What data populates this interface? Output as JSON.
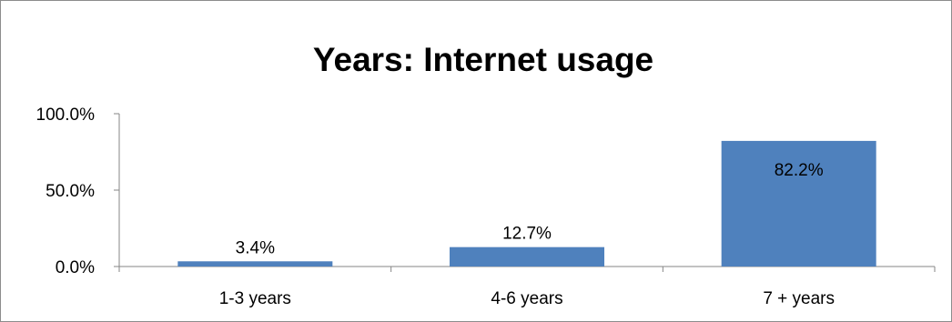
{
  "chart_data": {
    "type": "bar",
    "title": "Years: Internet usage",
    "xlabel": "",
    "ylabel": "",
    "categories": [
      "1-3 years",
      "4-6 years",
      "7 + years"
    ],
    "values": [
      3.4,
      12.7,
      82.2
    ],
    "data_labels": [
      "3.4%",
      "12.7%",
      "82.2%"
    ],
    "ylim": [
      0,
      100
    ],
    "yticks": [
      {
        "value": 0,
        "label": "0.0%"
      },
      {
        "value": 50,
        "label": "50.0%"
      },
      {
        "value": 100,
        "label": "100.0%"
      }
    ],
    "grid": false,
    "legend": "none",
    "colors": {
      "bar": "#4F81BD",
      "axis": "#868686",
      "border": "#8C8C8C",
      "text": "#000000"
    }
  }
}
